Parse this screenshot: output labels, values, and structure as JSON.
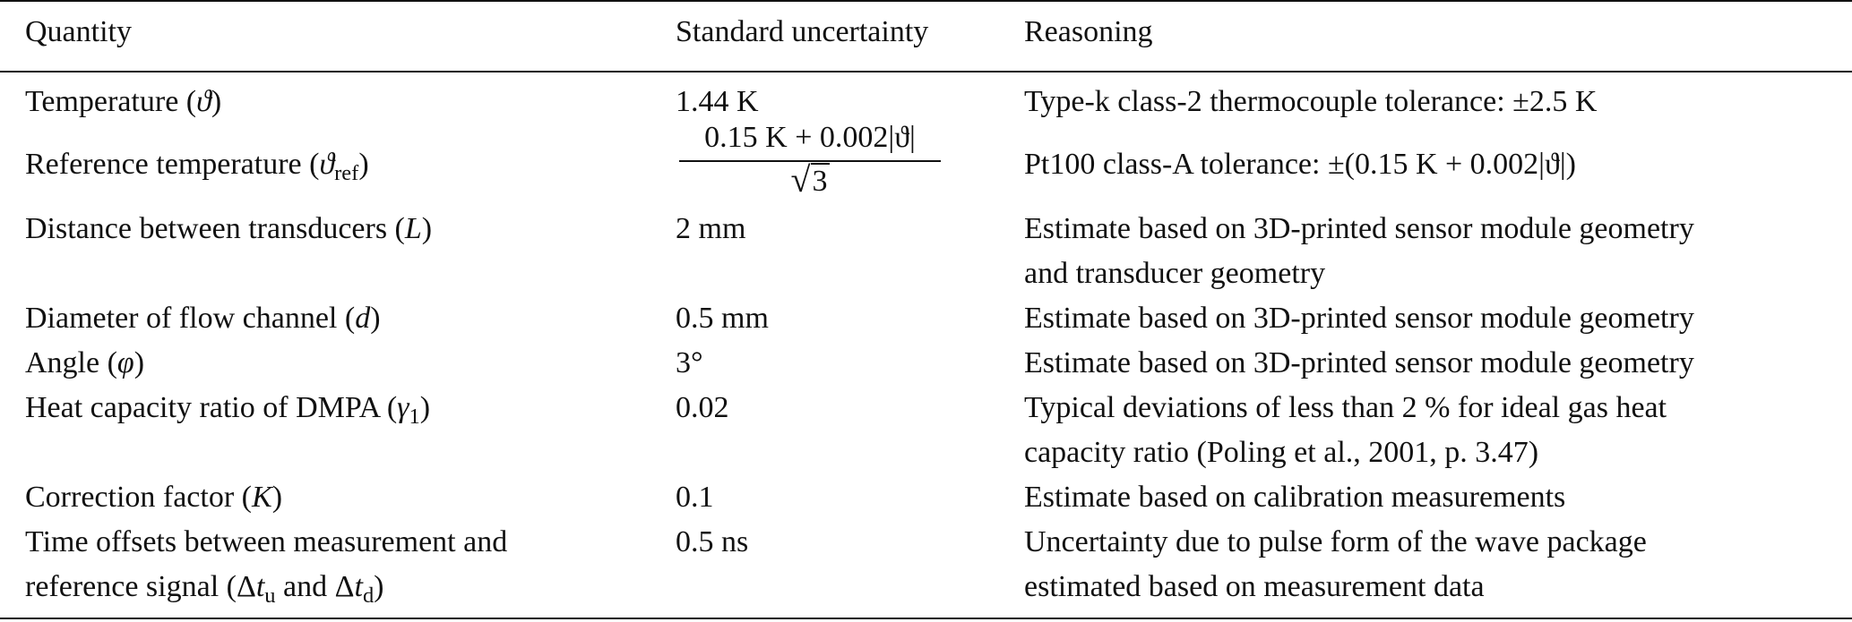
{
  "headers": {
    "quantity": "Quantity",
    "uncertainty": "Standard uncertainty",
    "reasoning": "Reasoning"
  },
  "rows": [
    {
      "quantity_text": "Temperature (",
      "quantity_symbol": "ϑ",
      "quantity_close": ")",
      "uncertainty": "1.44 K",
      "reasoning": [
        "Type-k class-2 thermocouple tolerance: ±2.5 K"
      ]
    },
    {
      "quantity_text": "Reference temperature (",
      "quantity_symbol": "ϑ",
      "quantity_sub": "ref",
      "quantity_close": ")",
      "uncertainty_numerator": "0.15 K + 0.002|ϑ|",
      "uncertainty_denominator": "3",
      "reasoning": [
        "Pt100 class-A tolerance: ±(0.15 K + 0.002|ϑ|)"
      ]
    },
    {
      "quantity_text": "Distance between transducers (",
      "quantity_symbol": "L",
      "quantity_close": ")",
      "uncertainty": "2 mm",
      "reasoning": [
        "Estimate based on 3D-printed sensor module geometry",
        "and transducer geometry"
      ]
    },
    {
      "quantity_text": "Diameter of flow channel (",
      "quantity_symbol": "d",
      "quantity_close": ")",
      "uncertainty": "0.5 mm",
      "reasoning": [
        "Estimate based on 3D-printed sensor module geometry"
      ]
    },
    {
      "quantity_text": "Angle (",
      "quantity_symbol": "φ",
      "quantity_close": ")",
      "uncertainty": "3°",
      "reasoning": [
        "Estimate based on 3D-printed sensor module geometry"
      ]
    },
    {
      "quantity_text": "Heat capacity ratio of DMPA (",
      "quantity_symbol": "γ",
      "quantity_sub": "1",
      "quantity_close": ")",
      "uncertainty": "0.02",
      "reasoning": [
        "Typical deviations of less than 2 % for ideal gas heat",
        "capacity ratio (Poling et al., 2001, p. 3.47)"
      ]
    },
    {
      "quantity_text": "Correction factor (",
      "quantity_symbol": "K",
      "quantity_close": ")",
      "uncertainty": "0.1",
      "reasoning": [
        "Estimate based on calibration measurements"
      ]
    },
    {
      "quantity_line1": "Time offsets between measurement and",
      "quantity_line2_prefix": "reference signal (Δ",
      "quantity_sym_a": "t",
      "quantity_sub_a": "u",
      "quantity_mid": " and Δ",
      "quantity_sym_b": "t",
      "quantity_sub_b": "d",
      "quantity_close": ")",
      "uncertainty": "0.5 ns",
      "reasoning": [
        "Uncertainty due to pulse form of the wave package",
        "estimated based on measurement data"
      ]
    }
  ]
}
